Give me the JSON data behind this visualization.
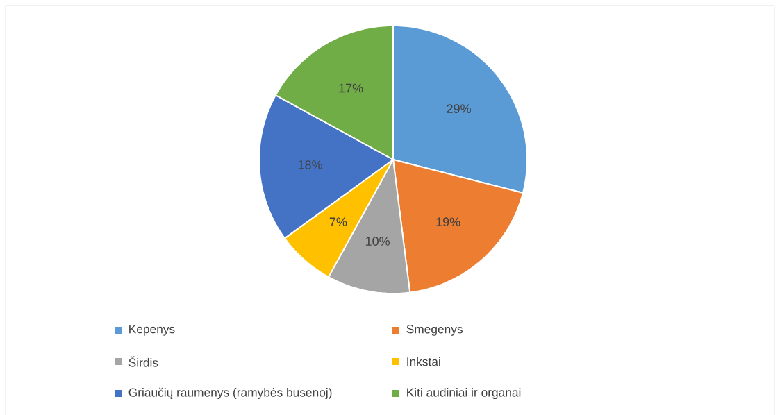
{
  "chart_data": {
    "type": "pie",
    "categories": [
      "Kepenys",
      "Smegenys",
      "Širdis",
      "Inkstai",
      "Griaučių raumenys (ramybės būsenoj)",
      "Kiti audiniai ir organai"
    ],
    "values": [
      29,
      19,
      10,
      7,
      18,
      17
    ],
    "colors": [
      "#5b9bd5",
      "#ed7d31",
      "#a5a5a5",
      "#ffc000",
      "#4472c4",
      "#70ad47"
    ],
    "value_labels": [
      "29%",
      "19%",
      "10%",
      "7%",
      "18%",
      "17%"
    ],
    "legend": "bottom"
  }
}
